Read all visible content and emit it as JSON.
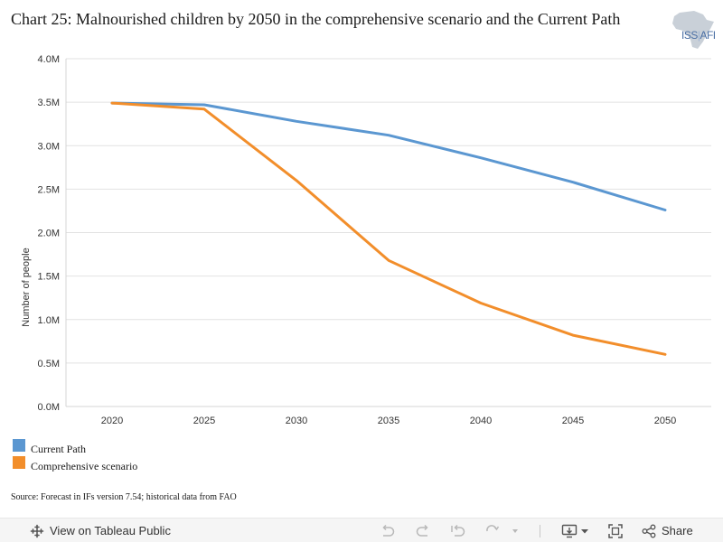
{
  "title": "Chart 25: Malnourished children by 2050 in the comprehensive scenario and the Current Path",
  "logo": {
    "text_left": "ISS",
    "text_right": "AFI"
  },
  "source": "Source: Forecast in IFs version 7.54; historical data from FAO",
  "toolbar": {
    "view_label": "View on Tableau Public",
    "share_label": "Share"
  },
  "chart_data": {
    "type": "line",
    "title": "",
    "xlabel": "",
    "ylabel": "Number of people",
    "x": [
      2020,
      2025,
      2030,
      2035,
      2040,
      2045,
      2050
    ],
    "ylim": [
      0,
      4.0
    ],
    "yticks": [
      0,
      0.5,
      1.0,
      1.5,
      2.0,
      2.5,
      3.0,
      3.5,
      4.0
    ],
    "ytick_labels": [
      "0.0M",
      "0.5M",
      "1.0M",
      "1.5M",
      "2.0M",
      "2.5M",
      "3.0M",
      "3.5M",
      "4.0M"
    ],
    "grid": true,
    "legend": "bottom-left",
    "series": [
      {
        "name": "Current Path",
        "color": "#5b97d1",
        "values": [
          3.49,
          3.47,
          3.28,
          3.12,
          2.86,
          2.58,
          2.26
        ]
      },
      {
        "name": "Comprehensive scenario",
        "color": "#f28e2b",
        "values": [
          3.49,
          3.42,
          2.6,
          1.68,
          1.19,
          0.82,
          0.6
        ]
      }
    ]
  }
}
